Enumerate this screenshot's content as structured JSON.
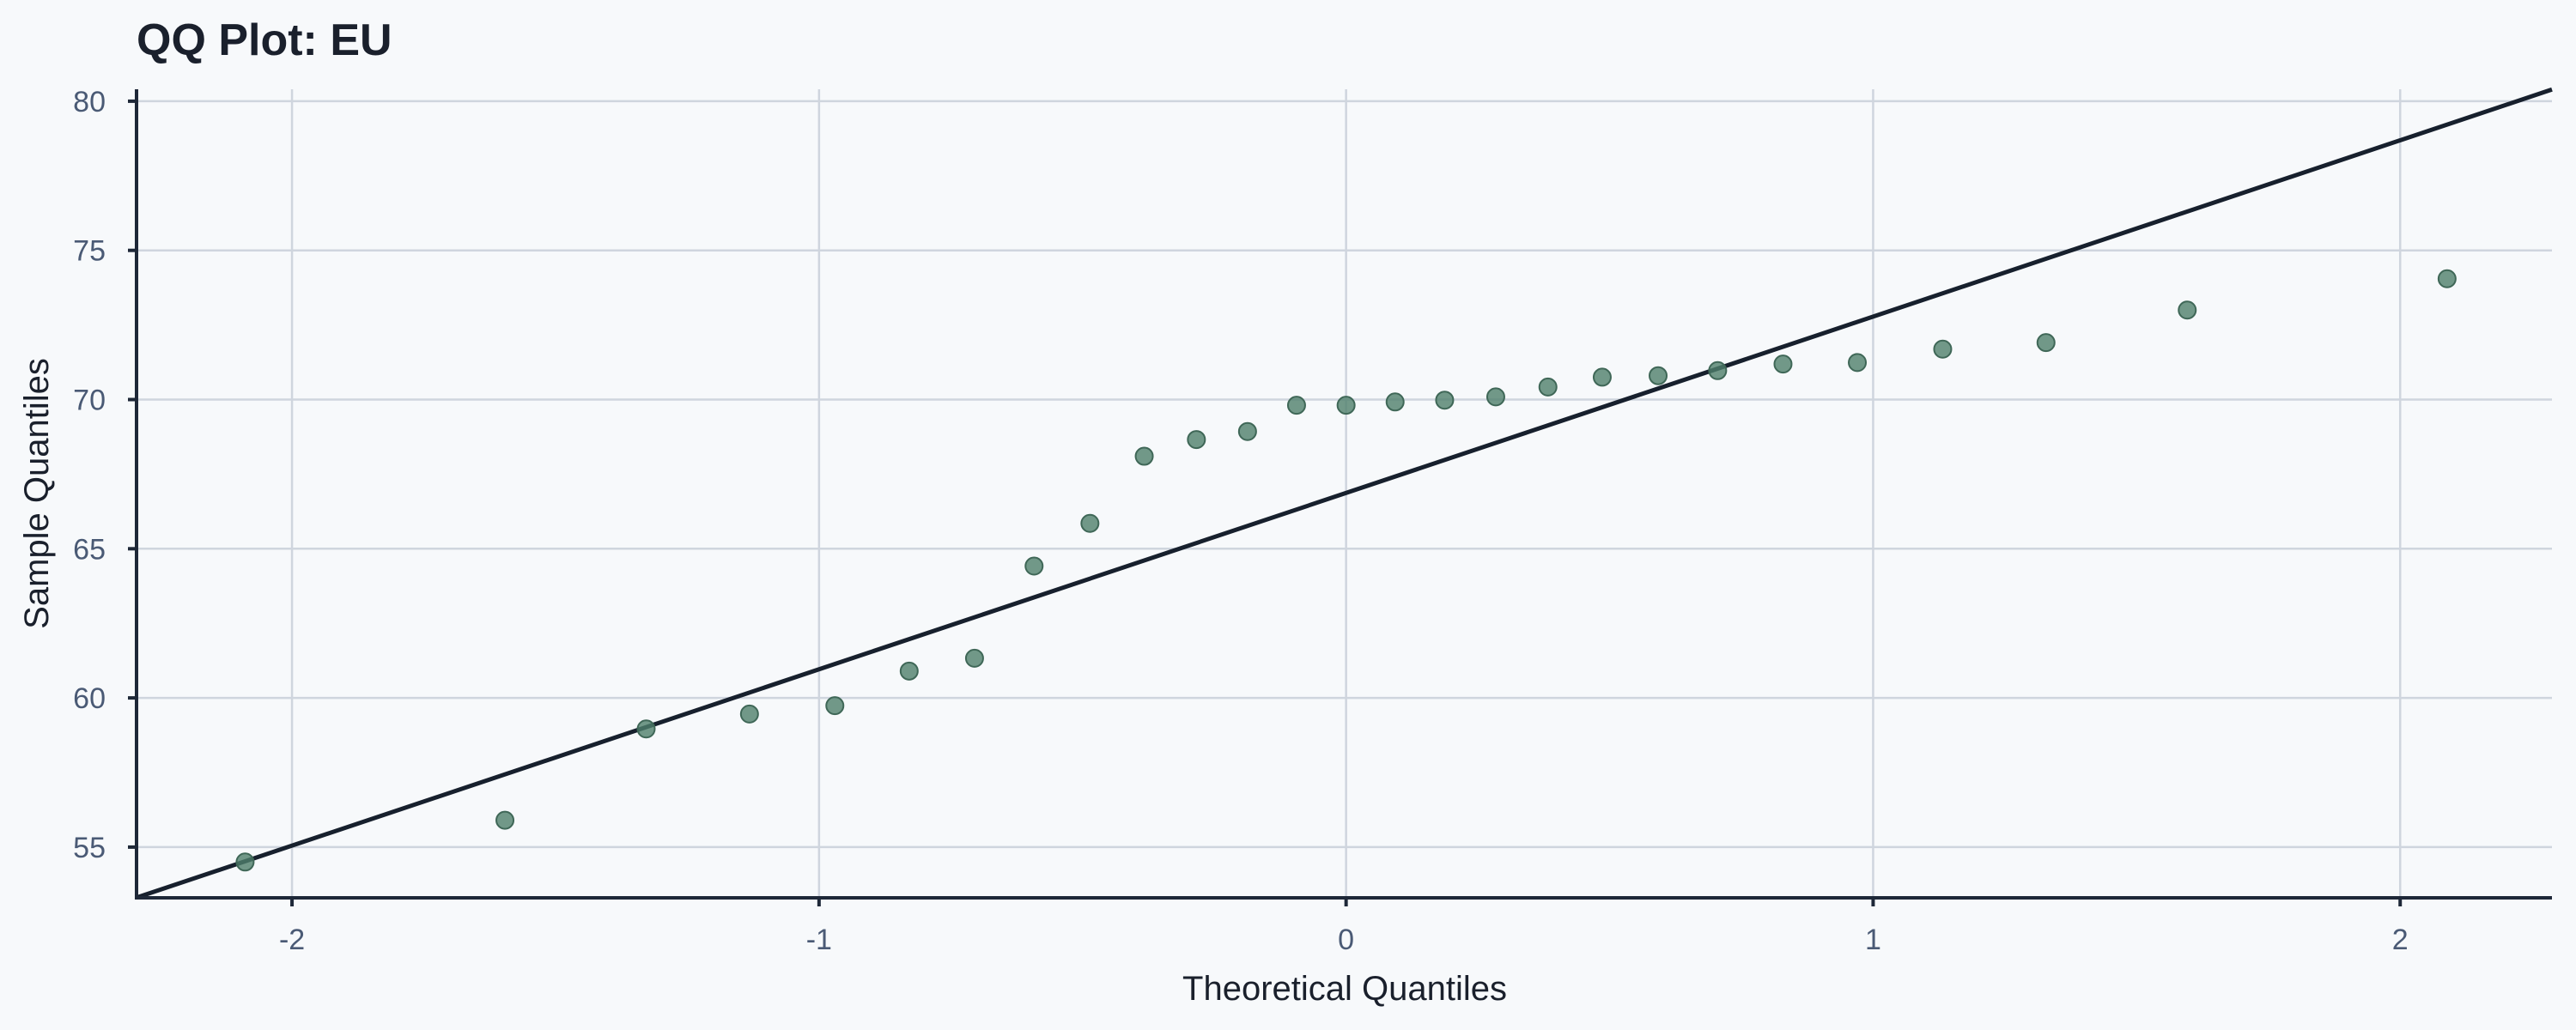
{
  "chart_data": {
    "type": "scatter",
    "title": "QQ Plot: EU",
    "xlabel": "Theoretical Quantiles",
    "ylabel": "Sample Quantiles",
    "xlim": [
      -2.295,
      2.288
    ],
    "ylim": [
      53.3,
      80.4
    ],
    "xticks": [
      -2,
      -1,
      0,
      1,
      2
    ],
    "xtick_labels": [
      "-2",
      "-1",
      "0",
      "1",
      "2"
    ],
    "yticks": [
      55,
      60,
      65,
      70,
      75,
      80
    ],
    "ytick_labels": [
      "55",
      "60",
      "65",
      "70",
      "75",
      "80"
    ],
    "grid": true,
    "colors": {
      "points": "#4f7f6c",
      "line": "#17202d"
    },
    "reference_line": {
      "slope": 5.91,
      "intercept": 66.87
    },
    "points": {
      "x": [
        -2.089,
        -1.596,
        -1.328,
        -1.132,
        -0.97,
        -0.829,
        -0.705,
        -0.592,
        -0.486,
        -0.383,
        -0.284,
        -0.187,
        -0.094,
        0,
        0.093,
        0.187,
        0.284,
        0.383,
        0.486,
        0.592,
        0.705,
        0.829,
        0.97,
        1.132,
        1.328,
        1.596,
        2.089
      ],
      "y": [
        54.5,
        55.9,
        58.96,
        59.46,
        59.74,
        60.9,
        61.33,
        64.42,
        65.85,
        68.1,
        68.66,
        68.93,
        69.81,
        69.81,
        69.92,
        69.98,
        70.09,
        70.42,
        70.75,
        70.8,
        70.97,
        71.19,
        71.24,
        71.69,
        71.91,
        73.0,
        74.05
      ]
    }
  }
}
